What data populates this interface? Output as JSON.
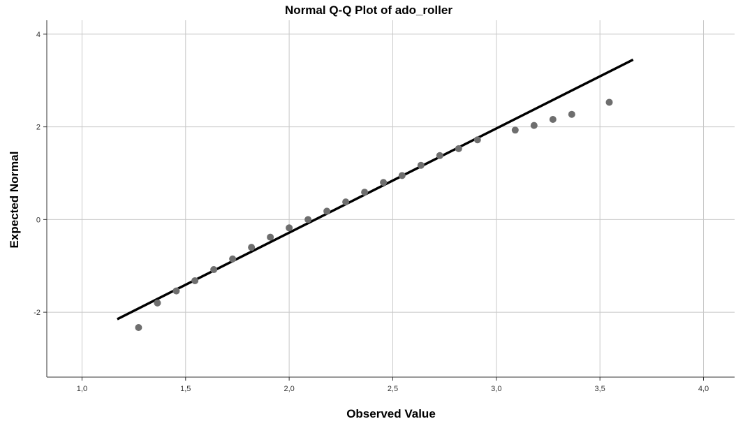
{
  "chart_data": {
    "type": "scatter",
    "title": "Normal Q-Q Plot of ado_roller",
    "xlabel": "Observed Value",
    "ylabel": "Expected Normal",
    "xlim": [
      0.83,
      4.15
    ],
    "ylim": [
      -3.4,
      4.3
    ],
    "x_ticks": [
      1.0,
      1.5,
      2.0,
      2.5,
      3.0,
      3.5,
      4.0
    ],
    "x_tick_labels": [
      "1,0",
      "1,5",
      "2,0",
      "2,5",
      "3,0",
      "3,5",
      "4,0"
    ],
    "y_ticks": [
      4,
      2,
      0,
      -2
    ],
    "y_tick_labels": [
      "4",
      "2",
      "0",
      "-2"
    ],
    "grid": true,
    "series": [
      {
        "points": [
          {
            "x": 1.273,
            "y": -2.33
          },
          {
            "x": 1.364,
            "y": -1.8
          },
          {
            "x": 1.455,
            "y": -1.54
          },
          {
            "x": 1.545,
            "y": -1.32
          },
          {
            "x": 1.636,
            "y": -1.08
          },
          {
            "x": 1.727,
            "y": -0.85
          },
          {
            "x": 1.818,
            "y": -0.6
          },
          {
            "x": 1.909,
            "y": -0.38
          },
          {
            "x": 2.0,
            "y": -0.18
          },
          {
            "x": 2.091,
            "y": 0.0
          },
          {
            "x": 2.182,
            "y": 0.18
          },
          {
            "x": 2.273,
            "y": 0.38
          },
          {
            "x": 2.364,
            "y": 0.59
          },
          {
            "x": 2.455,
            "y": 0.8
          },
          {
            "x": 2.545,
            "y": 0.95
          },
          {
            "x": 2.636,
            "y": 1.17
          },
          {
            "x": 2.727,
            "y": 1.38
          },
          {
            "x": 2.818,
            "y": 1.53
          },
          {
            "x": 2.909,
            "y": 1.72
          },
          {
            "x": 3.091,
            "y": 1.93
          },
          {
            "x": 3.182,
            "y": 2.03
          },
          {
            "x": 3.273,
            "y": 2.16
          },
          {
            "x": 3.364,
            "y": 2.27
          },
          {
            "x": 3.545,
            "y": 2.53
          }
        ]
      }
    ],
    "reference_line": {
      "x1": 1.17,
      "y1": -2.15,
      "x2": 3.66,
      "y2": 3.45
    }
  }
}
